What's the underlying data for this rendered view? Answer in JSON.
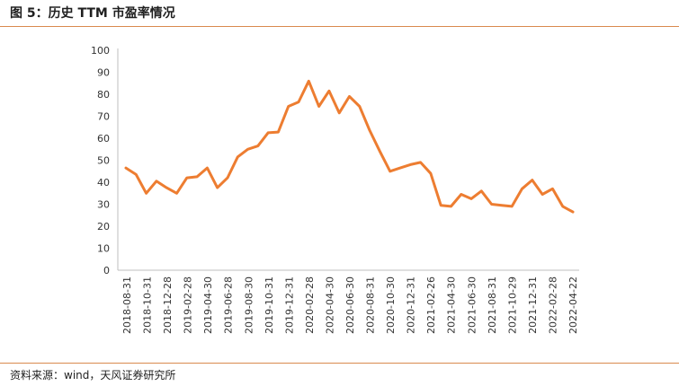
{
  "figure": {
    "title": "图 5：历史 TTM 市盈率情况",
    "source": "资料来源：wind，天风证券研究所"
  },
  "colors": {
    "line": "#ED7D31",
    "rule": "#D98A4E",
    "axis": "#BFBFBF"
  },
  "chart_data": {
    "type": "line",
    "title": "",
    "xlabel": "",
    "ylabel": "",
    "ylim": [
      0,
      100
    ],
    "yticks": [
      "0",
      "10",
      "20",
      "30",
      "40",
      "50",
      "60",
      "70",
      "80",
      "90",
      "100"
    ],
    "grid": false,
    "legend": "none",
    "x_tick_labels": [
      "2018-08-31",
      "2018-10-31",
      "2018-12-28",
      "2019-02-28",
      "2019-04-30",
      "2019-06-28",
      "2019-08-30",
      "2019-10-31",
      "2019-12-31",
      "2020-02-28",
      "2020-04-30",
      "2020-06-30",
      "2020-08-31",
      "2020-10-30",
      "2020-12-31",
      "2021-02-26",
      "2021-04-30",
      "2021-06-30",
      "2021-08-31",
      "2021-10-29",
      "2021-12-31",
      "2022-02-28",
      "2022-04-22"
    ],
    "series": [
      {
        "values": [
          46.5,
          43.5,
          35,
          40.5,
          37.5,
          35,
          42,
          42.5,
          46.5,
          37.5,
          42,
          51.5,
          55,
          56.5,
          62.5,
          62.8,
          74.5,
          76.5,
          86,
          74.5,
          81.5,
          71.5,
          79,
          74.5,
          63.5,
          54,
          45,
          46.5,
          48,
          49,
          44,
          29.5,
          29,
          34.5,
          32.5,
          36,
          30,
          29.5,
          29,
          37,
          41,
          34.5,
          37,
          29,
          26.5
        ]
      }
    ]
  }
}
